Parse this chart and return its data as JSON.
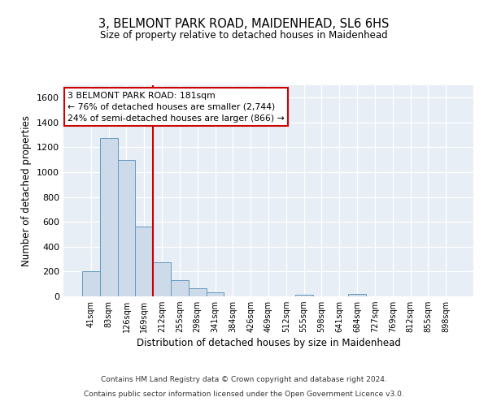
{
  "title": "3, BELMONT PARK ROAD, MAIDENHEAD, SL6 6HS",
  "subtitle": "Size of property relative to detached houses in Maidenhead",
  "xlabel": "Distribution of detached houses by size in Maidenhead",
  "ylabel": "Number of detached properties",
  "bar_labels": [
    "41sqm",
    "83sqm",
    "126sqm",
    "169sqm",
    "212sqm",
    "255sqm",
    "298sqm",
    "341sqm",
    "384sqm",
    "426sqm",
    "469sqm",
    "512sqm",
    "555sqm",
    "598sqm",
    "641sqm",
    "684sqm",
    "727sqm",
    "769sqm",
    "812sqm",
    "855sqm",
    "898sqm"
  ],
  "bar_values": [
    200,
    1275,
    1100,
    560,
    275,
    130,
    65,
    30,
    0,
    0,
    0,
    0,
    15,
    0,
    0,
    20,
    0,
    0,
    0,
    0,
    0
  ],
  "bar_color": "#ccdaea",
  "bar_edgecolor": "#6699bb",
  "ylim": [
    0,
    1700
  ],
  "yticks": [
    0,
    200,
    400,
    600,
    800,
    1000,
    1200,
    1400,
    1600
  ],
  "vline_x": 3.5,
  "vline_color": "#cc0000",
  "annotation_title": "3 BELMONT PARK ROAD: 181sqm",
  "annotation_line1": "← 76% of detached houses are smaller (2,744)",
  "annotation_line2": "24% of semi-detached houses are larger (866) →",
  "annotation_box_color": "#ffffff",
  "annotation_box_edgecolor": "#cc0000",
  "footer1": "Contains HM Land Registry data © Crown copyright and database right 2024.",
  "footer2": "Contains public sector information licensed under the Open Government Licence v3.0.",
  "background_color": "#ffffff",
  "plot_background": "#e8eef5"
}
